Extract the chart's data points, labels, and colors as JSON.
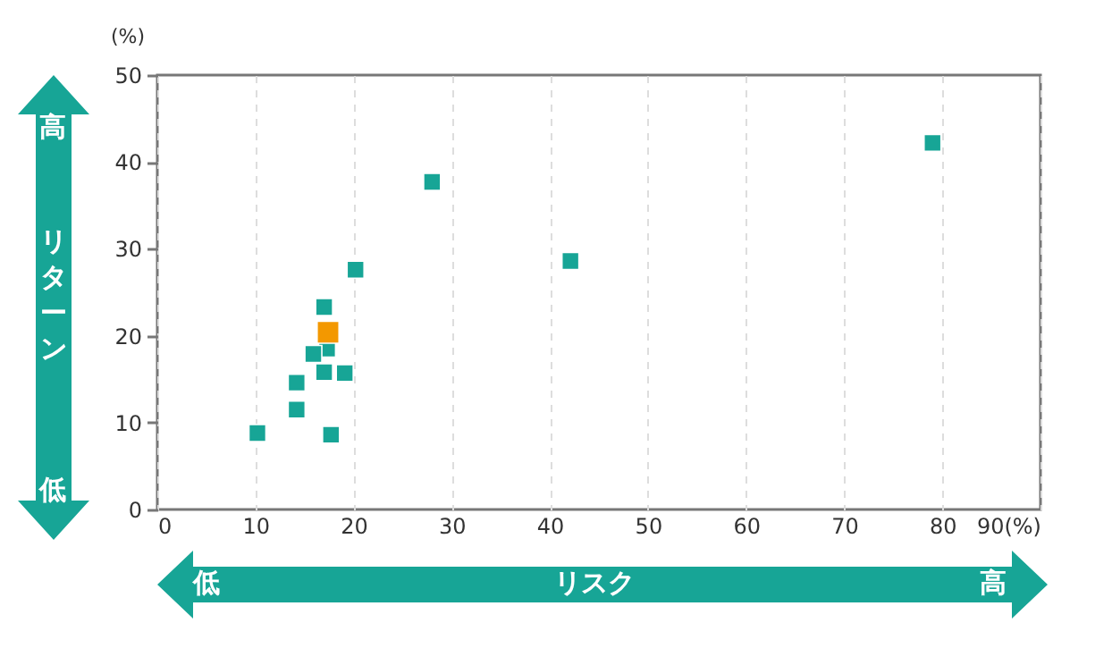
{
  "chart_data": {
    "type": "scatter",
    "xlabel": "リスク",
    "ylabel": "リターン",
    "annotations": [
      "(%)",
      "高",
      "低",
      "低",
      "高"
    ],
    "series": [
      {
        "color": "#17a596",
        "x": [
          10.2,
          17.7,
          14.2,
          14.2,
          17.0,
          19.1,
          17.3,
          15.9,
          17.0,
          20.2,
          28.0,
          42.1,
          79.0
        ],
        "values": [
          8.8,
          8.6,
          11.5,
          14.6,
          15.8,
          15.7,
          18.5,
          17.9,
          23.3,
          27.6,
          37.7,
          28.6,
          42.2
        ]
      },
      {
        "color": "#f39800",
        "x": [
          17.4
        ],
        "values": [
          20.4
        ]
      }
    ],
    "xlim": [
      0,
      90
    ],
    "xticks": [
      0,
      10,
      20,
      30,
      40,
      50,
      60,
      70,
      80,
      {
        "value": 90,
        "label": "90(%)"
      }
    ],
    "ylim": [
      0,
      50
    ],
    "yticks": [
      0,
      10,
      20,
      30,
      40,
      50
    ],
    "grid": "x",
    "marker": "square",
    "legend": false
  }
}
